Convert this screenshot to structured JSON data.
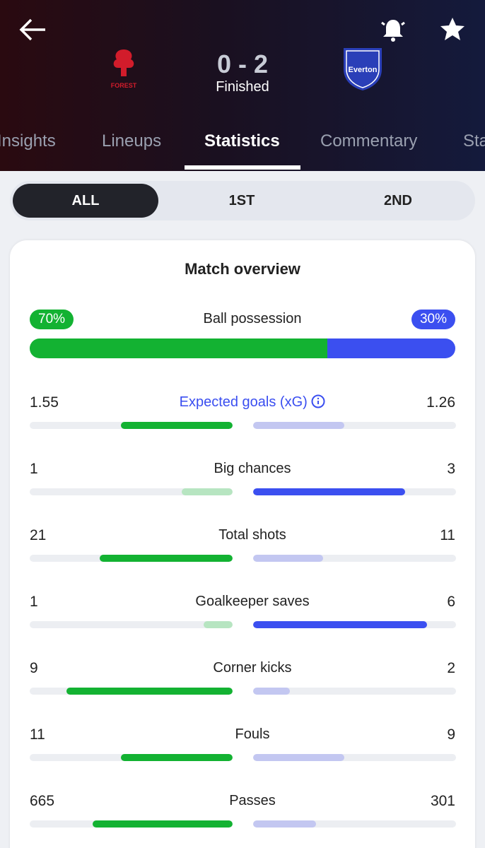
{
  "header": {
    "score": "0 - 2",
    "status": "Finished",
    "home_badge": "FOREST",
    "away_badge": "Everton"
  },
  "tabs": [
    "Insights",
    "Lineups",
    "Statistics",
    "Commentary",
    "Standings"
  ],
  "periods": [
    "ALL",
    "1ST",
    "2ND"
  ],
  "card_title": "Match overview",
  "possession": {
    "label": "Ball possession",
    "home": 70,
    "away": 30,
    "home_label": "70%",
    "away_label": "30%"
  },
  "stats": [
    {
      "label": "Expected goals (xG)",
      "home": 1.55,
      "away": 1.26,
      "label_color": "#3a4ef0"
    },
    {
      "label": "Big chances",
      "home": 1,
      "away": 3
    },
    {
      "label": "Total shots",
      "home": 21,
      "away": 11
    },
    {
      "label": "Goalkeeper saves",
      "home": 1,
      "away": 6
    },
    {
      "label": "Corner kicks",
      "home": 9,
      "away": 2
    },
    {
      "label": "Fouls",
      "home": 11,
      "away": 9
    },
    {
      "label": "Passes",
      "home": 665,
      "away": 301
    }
  ],
  "colors": {
    "home": "#13b232",
    "home_light": "#b7e5c1",
    "away": "#3b4ff0",
    "away_light": "#c3c7f1"
  }
}
